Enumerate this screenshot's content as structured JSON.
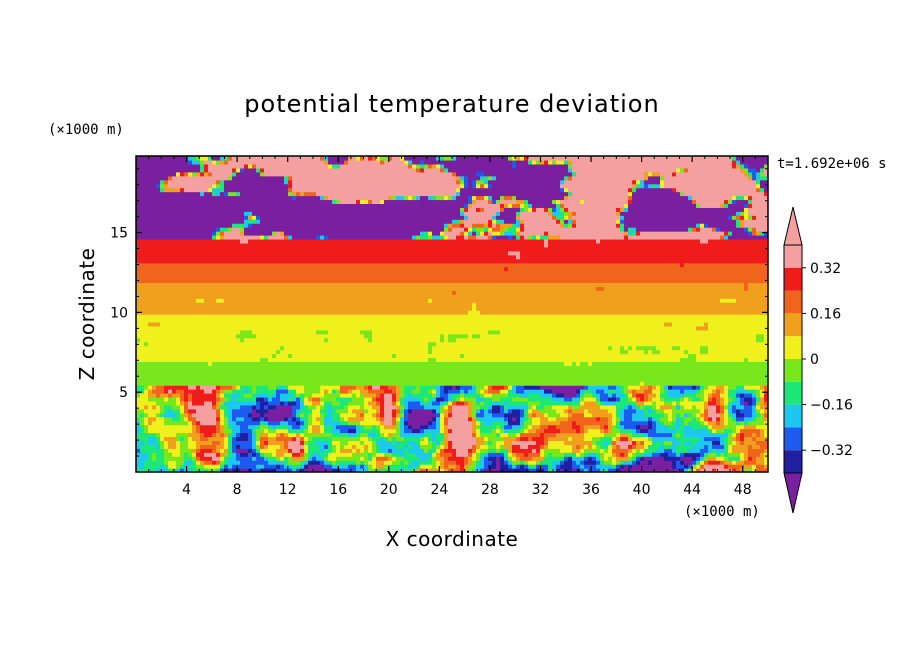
{
  "chart_data": {
    "type": "heatmap",
    "title": "potential temperature deviation",
    "xlabel": "X coordinate",
    "ylabel": "Z coordinate",
    "x_unit": "(×1000 m)",
    "y_unit": "(×1000 m)",
    "time_label": "t=1.692e+06 s",
    "xlim": [
      0,
      50
    ],
    "ylim": [
      0,
      19.8
    ],
    "x_ticks": [
      4,
      8,
      12,
      16,
      20,
      24,
      28,
      32,
      36,
      40,
      44,
      48
    ],
    "y_ticks": [
      5,
      10,
      15
    ],
    "colorbar": {
      "levels": [
        -0.4,
        -0.32,
        -0.24,
        -0.16,
        -0.08,
        0,
        0.08,
        0.16,
        0.24,
        0.32,
        0.4
      ],
      "tick_labels": [
        "0.32",
        "0.16",
        "0",
        "−0.16",
        "−0.32"
      ],
      "tick_values": [
        0.32,
        0.16,
        0,
        -0.16,
        -0.32
      ],
      "colors": [
        "#7a1fa0",
        "#1f1fa0",
        "#1c5af0",
        "#1cc8f0",
        "#1ce87a",
        "#78e81c",
        "#f0f01c",
        "#f0a01c",
        "#f0641c",
        "#f01c1c",
        "#f4a0a0"
      ],
      "extend": "both"
    },
    "bands": [
      {
        "z": [
          0.0,
          5.5
        ],
        "pattern": "turbulent",
        "description_values": "mixed -0.4 to 0.4"
      },
      {
        "z": [
          5.5,
          7.0
        ],
        "value": -0.02
      },
      {
        "z": [
          7.0,
          9.0
        ],
        "value": 0.02
      },
      {
        "z": [
          9.0,
          10.0
        ],
        "value": 0.06
      },
      {
        "z": [
          10.0,
          11.0
        ],
        "value": 0.1
      },
      {
        "z": [
          11.0,
          12.0
        ],
        "value": 0.14
      },
      {
        "z": [
          12.0,
          13.0
        ],
        "value": 0.22
      },
      {
        "z": [
          13.0,
          14.5
        ],
        "value": 0.3
      },
      {
        "z": [
          14.5,
          19.8
        ],
        "pattern": "turbulent",
        "description_values": "mostly 0.4 and -0.4"
      }
    ]
  }
}
